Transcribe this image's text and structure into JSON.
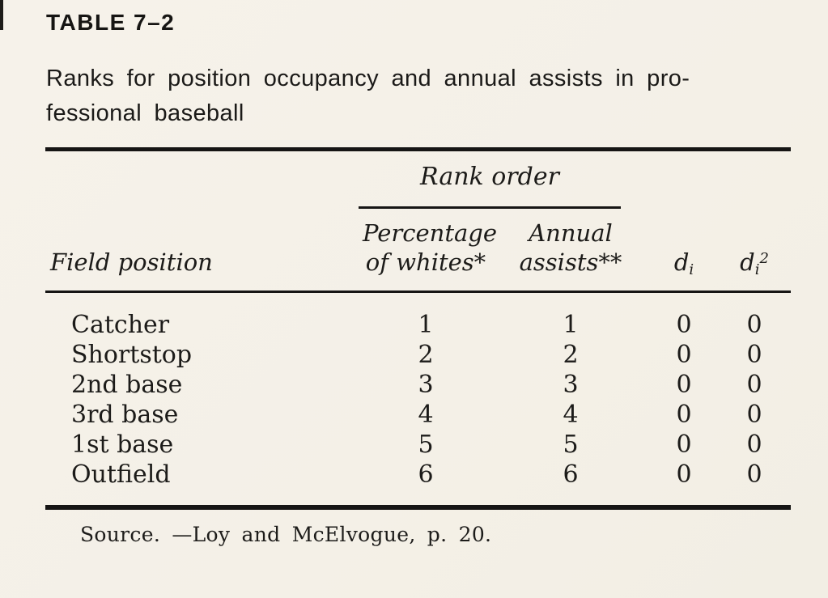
{
  "document": {
    "table_label": "TABLE 7–2",
    "caption_line1": "Ranks for position occupancy and annual assists in pro-",
    "caption_line2": "fessional baseball",
    "source_note": "Source. —Loy and McElvogue, p. 20."
  },
  "table": {
    "spanner_heading": "Rank order",
    "columns": {
      "field_position": "Field position",
      "col1_line1": "Percentage",
      "col1_line2": "of whites*",
      "col2_line1": "Annual",
      "col2_line2": "assists**",
      "di": {
        "base": "d",
        "sub": "i"
      },
      "di2": {
        "base": "d",
        "sub": "i",
        "sup": "2"
      }
    },
    "rows": [
      {
        "position": "Catcher",
        "pct_whites_rank": "1",
        "annual_assists_rank": "1",
        "di": "0",
        "di2": "0"
      },
      {
        "position": "Shortstop",
        "pct_whites_rank": "2",
        "annual_assists_rank": "2",
        "di": "0",
        "di2": "0"
      },
      {
        "position": "2nd base",
        "pct_whites_rank": "3",
        "annual_assists_rank": "3",
        "di": "0",
        "di2": "0"
      },
      {
        "position": "3rd base",
        "pct_whites_rank": "4",
        "annual_assists_rank": "4",
        "di": "0",
        "di2": "0"
      },
      {
        "position": "1st base",
        "pct_whites_rank": "5",
        "annual_assists_rank": "5",
        "di": "0",
        "di2": "0"
      },
      {
        "position": "Outfield",
        "pct_whites_rank": "6",
        "annual_assists_rank": "6",
        "di": "0",
        "di2": "0"
      }
    ]
  },
  "colors": {
    "paper": "#f5f1e8",
    "ink": "#1b1a18"
  }
}
